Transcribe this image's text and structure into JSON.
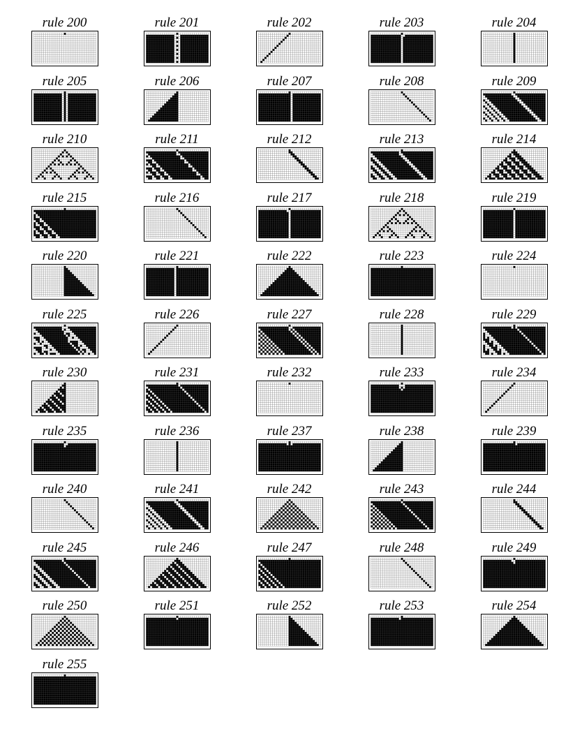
{
  "figure": {
    "columns": 5,
    "steps": 15,
    "rule_prefix": "rule",
    "rules": [
      200,
      201,
      202,
      203,
      204,
      205,
      206,
      207,
      208,
      209,
      210,
      211,
      212,
      213,
      214,
      215,
      216,
      217,
      218,
      219,
      220,
      221,
      222,
      223,
      224,
      225,
      226,
      227,
      228,
      229,
      230,
      231,
      232,
      233,
      234,
      235,
      236,
      237,
      238,
      239,
      240,
      241,
      242,
      243,
      244,
      245,
      246,
      247,
      248,
      249,
      250,
      251,
      252,
      253,
      254,
      255
    ],
    "colors": {
      "on": "#000000",
      "off": "#ffffff",
      "grid": "#555555",
      "border": "#000000"
    }
  }
}
